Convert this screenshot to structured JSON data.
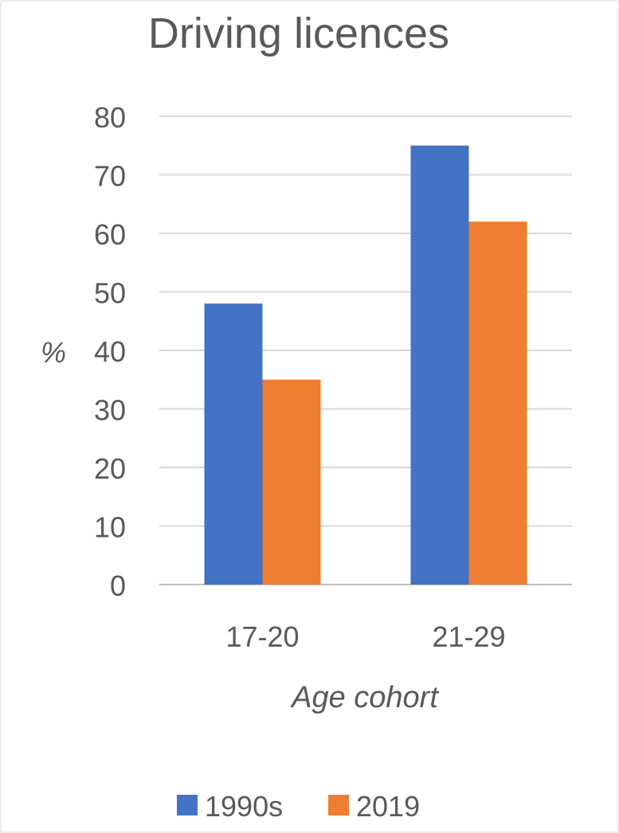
{
  "chart_data": {
    "type": "bar",
    "title": "Driving licences",
    "xlabel": "Age cohort",
    "ylabel": "%",
    "categories": [
      "17-20",
      "21-29"
    ],
    "series": [
      {
        "name": "1990s",
        "values": [
          48,
          75
        ],
        "color": "#4472C4"
      },
      {
        "name": "2019",
        "values": [
          35,
          62
        ],
        "color": "#ED7D31"
      }
    ],
    "ylim": [
      0,
      80
    ],
    "yticks": [
      0,
      10,
      20,
      30,
      40,
      50,
      60,
      70,
      80
    ],
    "grid": true,
    "legend_position": "bottom"
  }
}
